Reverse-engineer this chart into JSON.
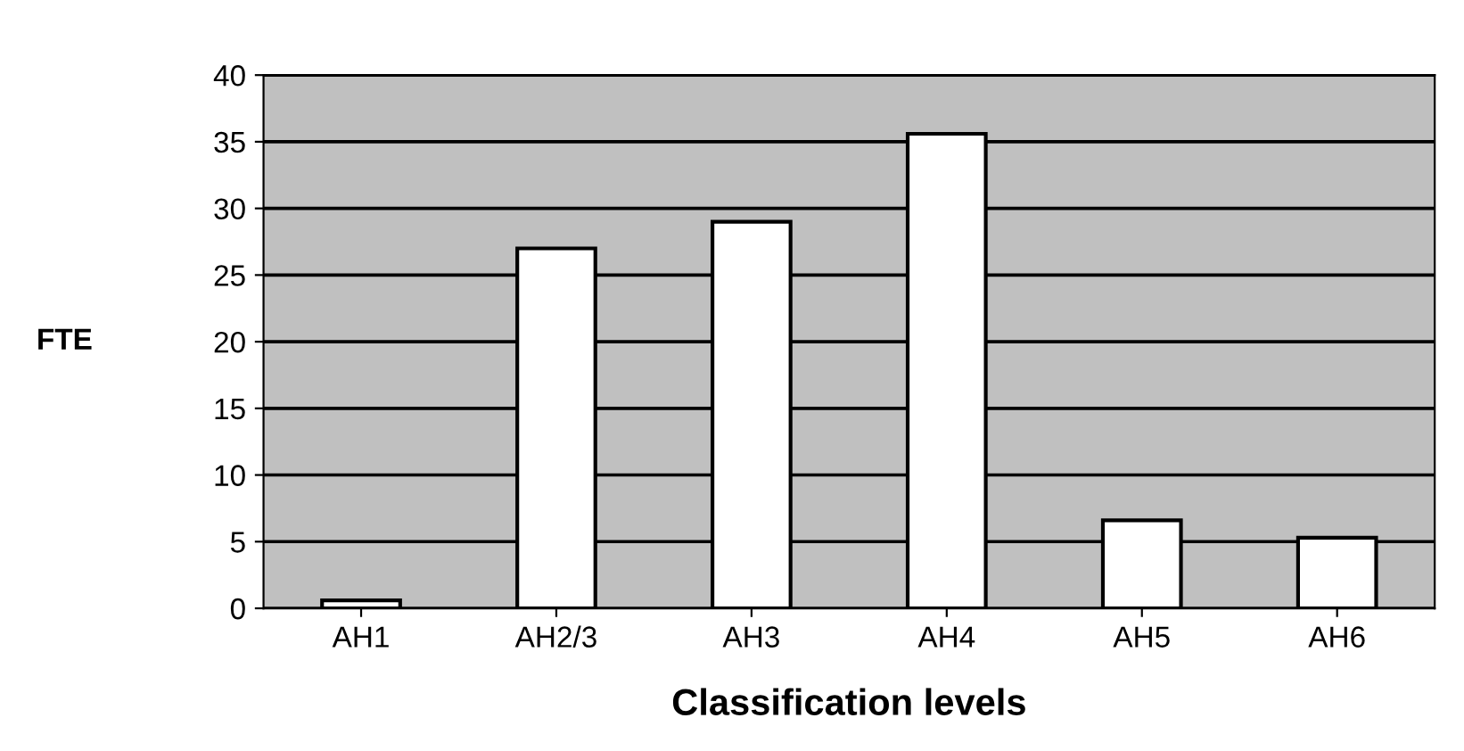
{
  "chart_data": {
    "type": "bar",
    "xlabel": "Classification levels",
    "ylabel": "FTE",
    "categories": [
      "AH1",
      "AH2/3",
      "AH3",
      "AH4",
      "AH5",
      "AH6"
    ],
    "values": [
      0.6,
      27,
      29,
      35.6,
      6.6,
      5.3
    ],
    "color": "#ffffff",
    "ylim": [
      0,
      40
    ],
    "yticks": [
      0,
      5,
      10,
      15,
      20,
      25,
      30,
      35,
      40
    ],
    "grid": "y",
    "legend": false
  }
}
